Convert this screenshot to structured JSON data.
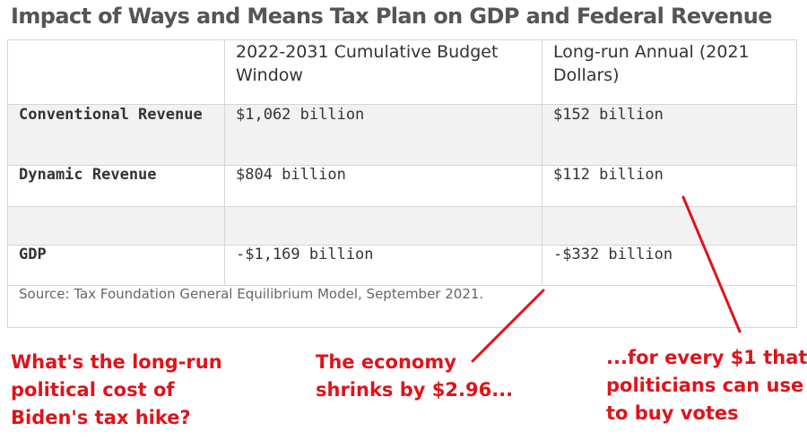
{
  "title": "Impact of Ways and Means Tax Plan on GDP and Federal Revenue",
  "table": {
    "headers": [
      "",
      "2022-2031 Cumulative Budget Window",
      "Long-run Annual (2021 Dollars)"
    ],
    "rows": [
      {
        "label": "Conventional Revenue",
        "window": "$1,062 billion",
        "longrun": "$152 billion"
      },
      {
        "label": "Dynamic Revenue",
        "window": "$804 billion",
        "longrun": "$112 billion"
      },
      {
        "label": "",
        "window": "",
        "longrun": ""
      },
      {
        "label": "GDP",
        "window": "-$1,169 billion",
        "longrun": "-$332 billion"
      }
    ],
    "source": "Source: Tax Foundation General Equilibrium Model, September 2021."
  },
  "annotations": {
    "left": [
      "What's the long-run",
      "political cost of",
      "Biden's tax hike?"
    ],
    "middle": [
      "The economy",
      "shrinks by $2.96..."
    ],
    "right": [
      "...for every $1 that",
      "politicians can use",
      "to buy votes"
    ]
  },
  "colors": {
    "annotation": "#e0131a",
    "row_shade": "#f2f2f2",
    "border": "#d6d6d6"
  }
}
